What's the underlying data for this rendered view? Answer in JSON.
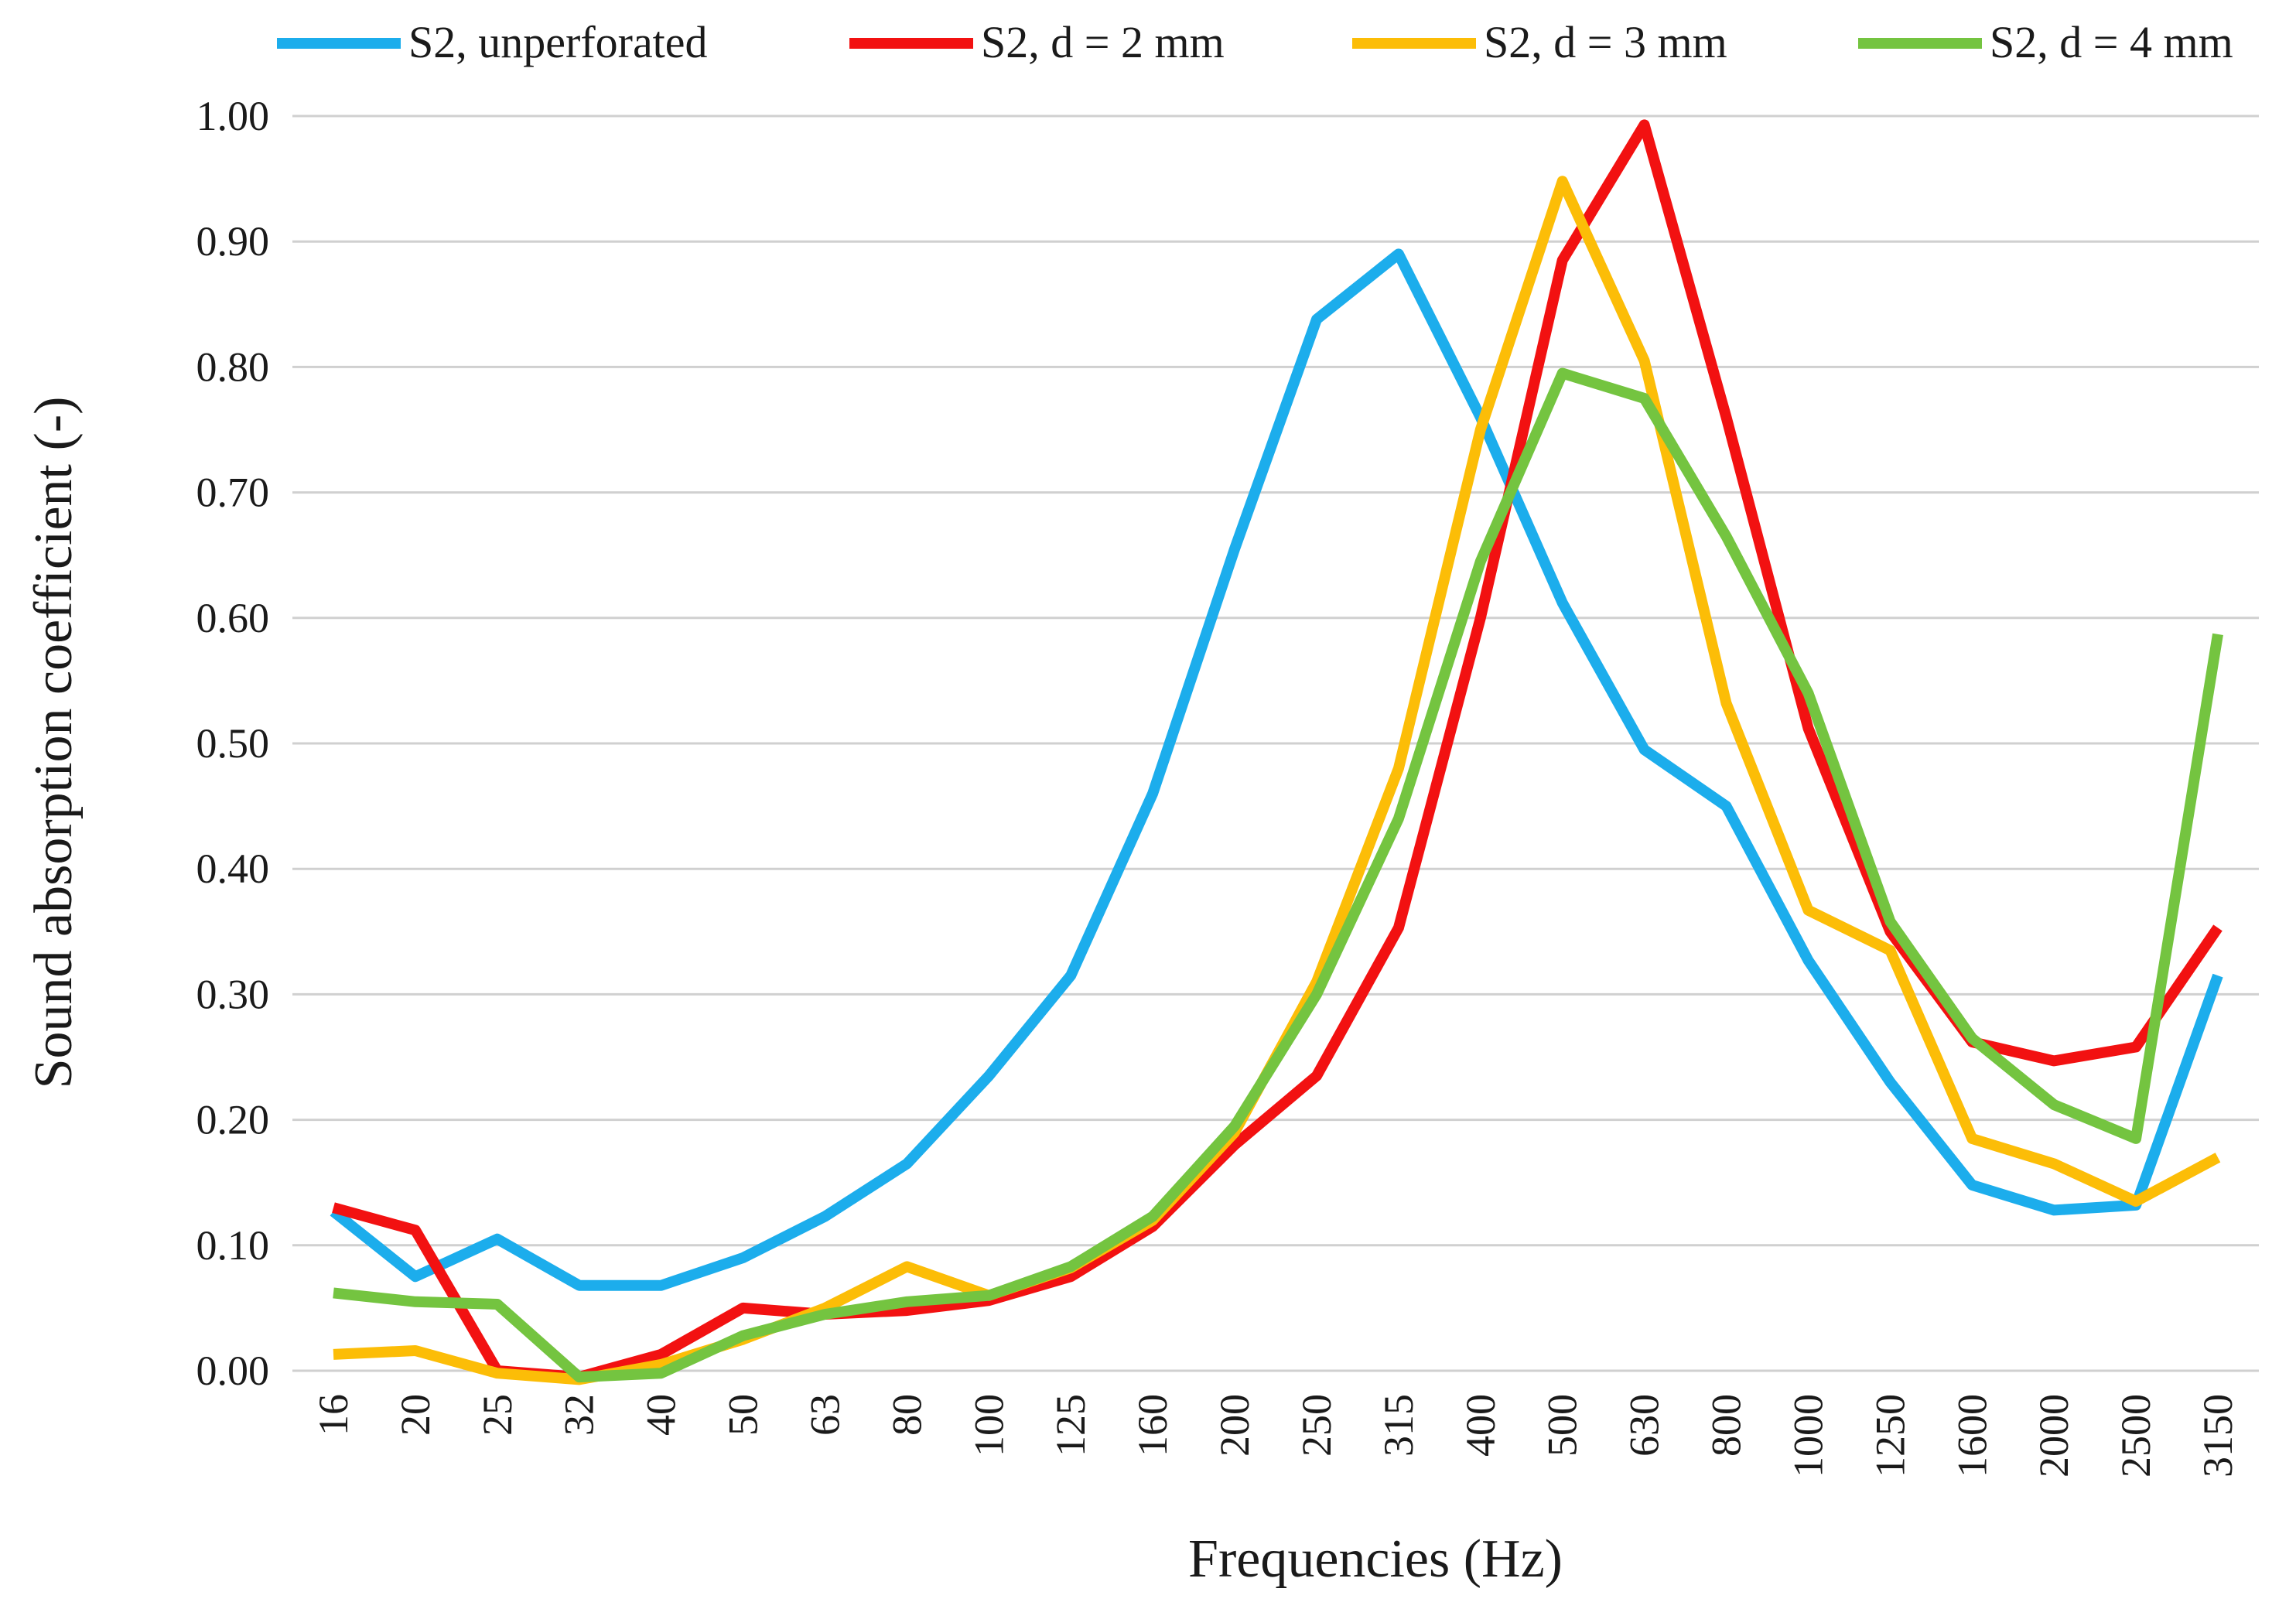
{
  "chart_data": {
    "type": "line",
    "title": "",
    "xlabel": "Frequencies (Hz)",
    "ylabel": "Sound absorption coefficient (-)",
    "ylim": [
      0,
      1.0
    ],
    "yticks": [
      "0.00",
      "0.10",
      "0.20",
      "0.30",
      "0.40",
      "0.50",
      "0.60",
      "0.70",
      "0.80",
      "0.90",
      "1.00"
    ],
    "grid": true,
    "legend_position": "top",
    "categories": [
      "16",
      "20",
      "25",
      "32",
      "40",
      "50",
      "63",
      "80",
      "100",
      "125",
      "160",
      "200",
      "250",
      "315",
      "400",
      "500",
      "630",
      "800",
      "1000",
      "1250",
      "1600",
      "2000",
      "2500",
      "3150"
    ],
    "series": [
      {
        "name": "S2, unperforated",
        "color": "#1cadec",
        "values": [
          0.127,
          0.075,
          0.105,
          0.068,
          0.068,
          0.09,
          0.123,
          0.165,
          0.235,
          0.315,
          0.46,
          0.655,
          0.838,
          0.89,
          0.76,
          0.612,
          0.495,
          0.45,
          0.327,
          0.23,
          0.148,
          0.128,
          0.132,
          0.315
        ]
      },
      {
        "name": "S2, d = 2 mm",
        "color": "#f21111",
        "values": [
          0.13,
          0.112,
          0.0,
          -0.005,
          0.013,
          0.05,
          0.045,
          0.048,
          0.056,
          0.075,
          0.115,
          0.18,
          0.235,
          0.353,
          0.6,
          0.885,
          0.993,
          0.76,
          0.512,
          0.35,
          0.262,
          0.247,
          0.258,
          0.353
        ]
      },
      {
        "name": "S2, d = 3 mm",
        "color": "#fcbd07",
        "values": [
          0.013,
          0.016,
          -0.002,
          -0.007,
          0.005,
          0.025,
          0.05,
          0.083,
          0.06,
          0.082,
          0.12,
          0.19,
          0.31,
          0.48,
          0.75,
          0.948,
          0.805,
          0.532,
          0.367,
          0.335,
          0.185,
          0.165,
          0.135,
          0.17
        ]
      },
      {
        "name": "S2, d = 4 mm",
        "color": "#74c440",
        "values": [
          0.062,
          0.055,
          0.053,
          -0.005,
          -0.002,
          0.028,
          0.045,
          0.055,
          0.06,
          0.083,
          0.123,
          0.195,
          0.3,
          0.44,
          0.645,
          0.795,
          0.775,
          0.665,
          0.54,
          0.358,
          0.265,
          0.212,
          0.185,
          0.587
        ]
      }
    ]
  }
}
